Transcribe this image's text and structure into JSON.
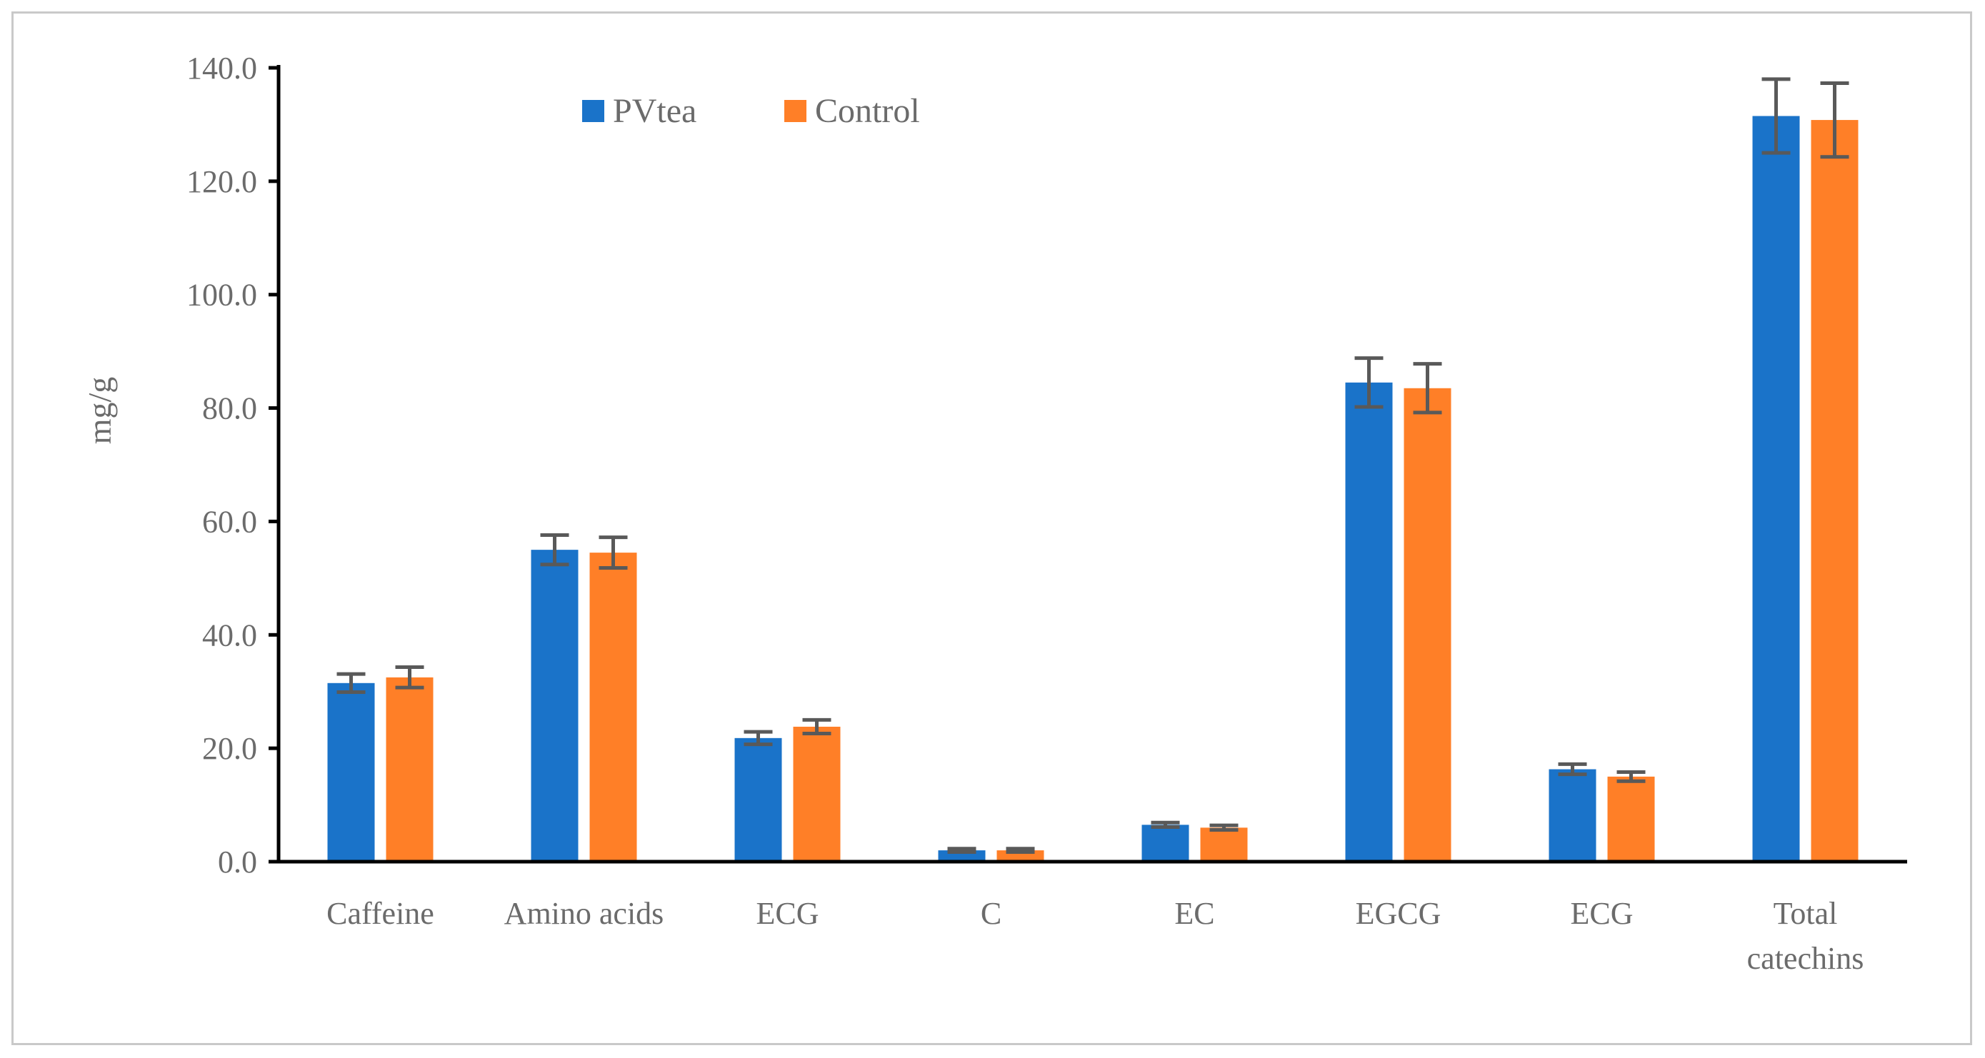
{
  "chart_data": {
    "type": "bar",
    "title": "",
    "xlabel": "",
    "ylabel": "mg/g",
    "ylim": [
      0,
      140
    ],
    "yticks": [
      "0.0",
      "20.0",
      "40.0",
      "60.0",
      "80.0",
      "100.0",
      "120.0",
      "140.0"
    ],
    "categories": [
      [
        "Caffeine"
      ],
      [
        "Amino acids"
      ],
      [
        "ECG"
      ],
      [
        "C"
      ],
      [
        "EC"
      ],
      [
        "EGCG"
      ],
      [
        "ECG"
      ],
      [
        "Total",
        "catechins"
      ]
    ],
    "series": [
      {
        "name": "PVtea",
        "color": "#1a73c9",
        "values": [
          31.5,
          55.0,
          21.8,
          2.0,
          6.5,
          84.5,
          16.3,
          131.5
        ],
        "errors": [
          1.6,
          2.6,
          1.1,
          0.3,
          0.4,
          4.3,
          0.9,
          6.5
        ]
      },
      {
        "name": "Control",
        "color": "#ff7f27",
        "values": [
          32.5,
          54.5,
          23.8,
          2.0,
          6.0,
          83.5,
          15.0,
          130.8
        ],
        "errors": [
          1.8,
          2.7,
          1.2,
          0.3,
          0.4,
          4.3,
          0.8,
          6.5
        ]
      }
    ],
    "error_bar_color": "#595959",
    "axis_color": "#000000",
    "legend_position": "top-left",
    "grid": false
  }
}
